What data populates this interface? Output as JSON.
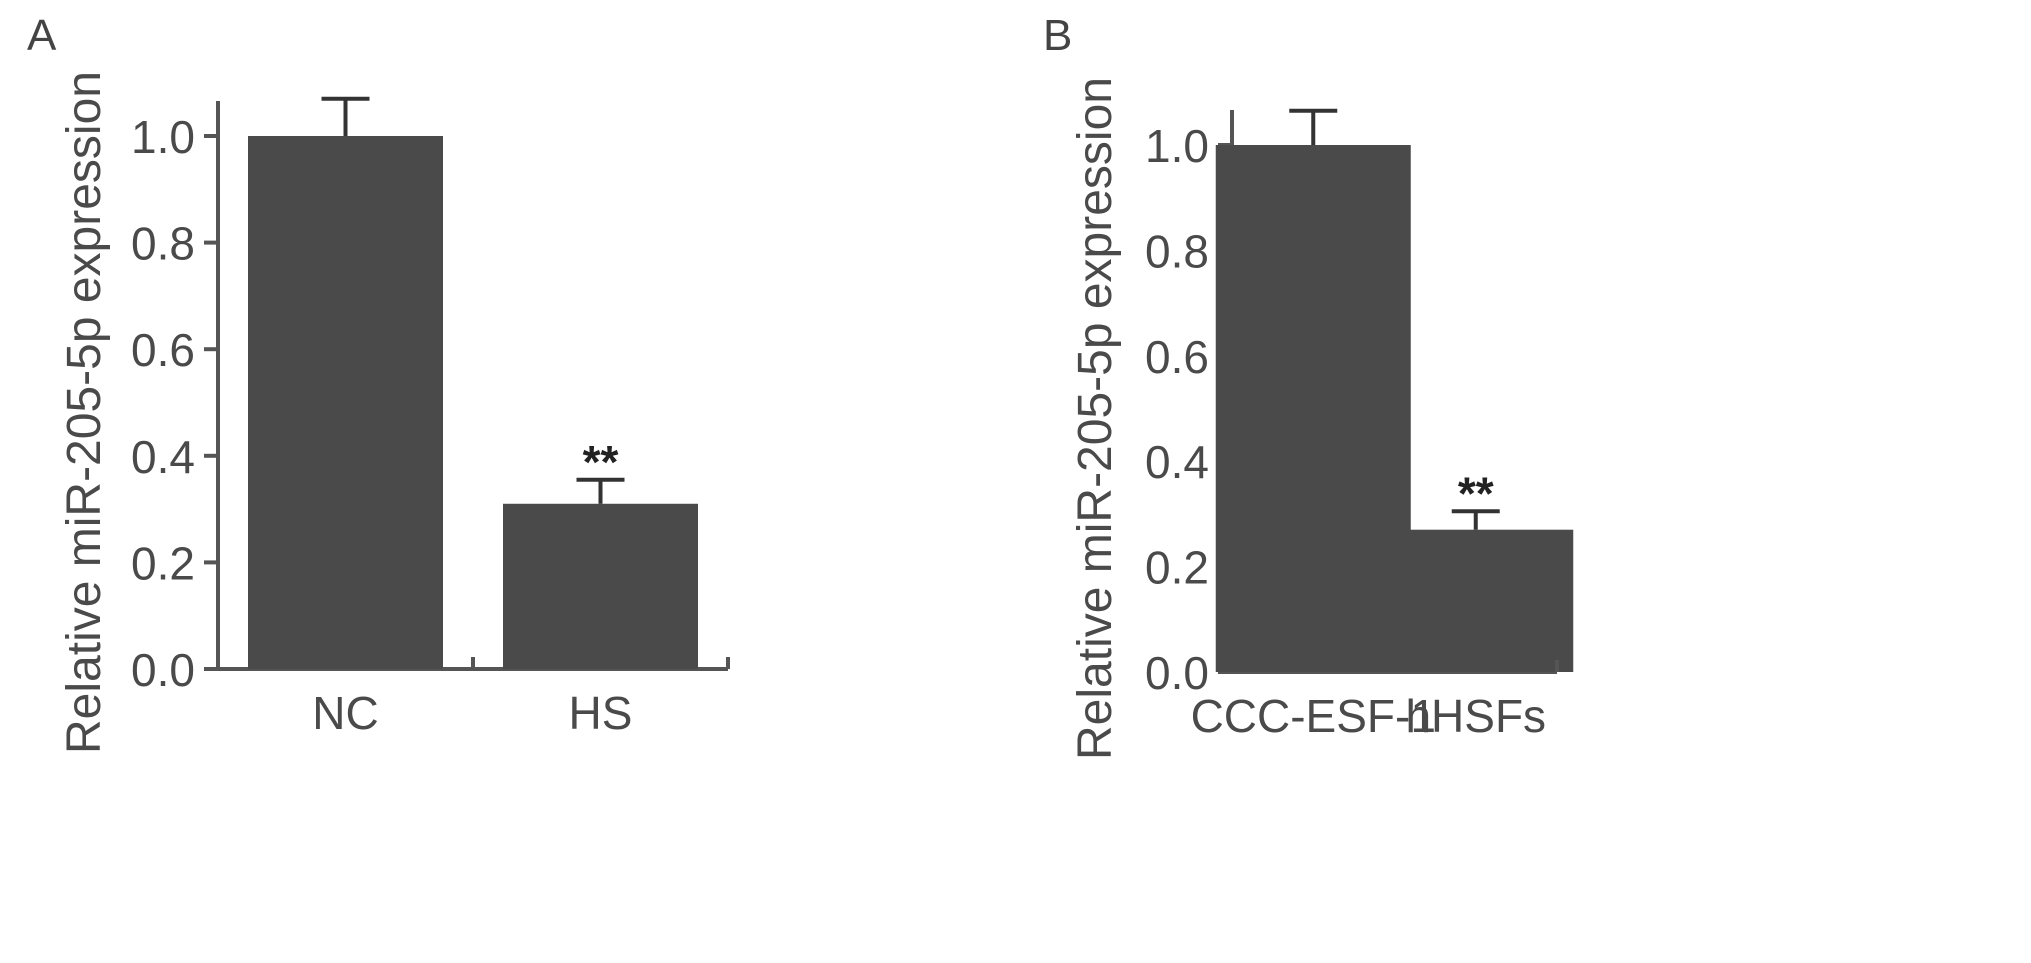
{
  "chart_data": [
    {
      "type": "bar",
      "panel_label": "A",
      "categories": [
        "NC",
        "HS"
      ],
      "values": [
        1.0,
        0.31
      ],
      "errors": [
        0.07,
        0.045
      ],
      "significance": [
        "",
        "**"
      ],
      "ylabel": "Relative miR-205-5p expression",
      "xlabel": "",
      "ylim": [
        0,
        1.0
      ],
      "yticks": [
        "0.0",
        "0.2",
        "0.4",
        "0.6",
        "0.8",
        "1.0"
      ],
      "bar_color": "#4a4a4a",
      "axis_color": "#555555"
    },
    {
      "type": "bar",
      "panel_label": "B",
      "categories": [
        "CCC-ESF-1",
        "hHSFs"
      ],
      "values": [
        1.0,
        0.27
      ],
      "errors": [
        0.065,
        0.035
      ],
      "significance": [
        "",
        "**"
      ],
      "ylabel": "Relative miR-205-5p expression",
      "xlabel": "",
      "ylim": [
        0,
        1.0
      ],
      "yticks": [
        "0.0",
        "0.2",
        "0.4",
        "0.6",
        "0.8",
        "1.0"
      ],
      "bar_color": "#4a4a4a",
      "axis_color": "#555555"
    }
  ]
}
